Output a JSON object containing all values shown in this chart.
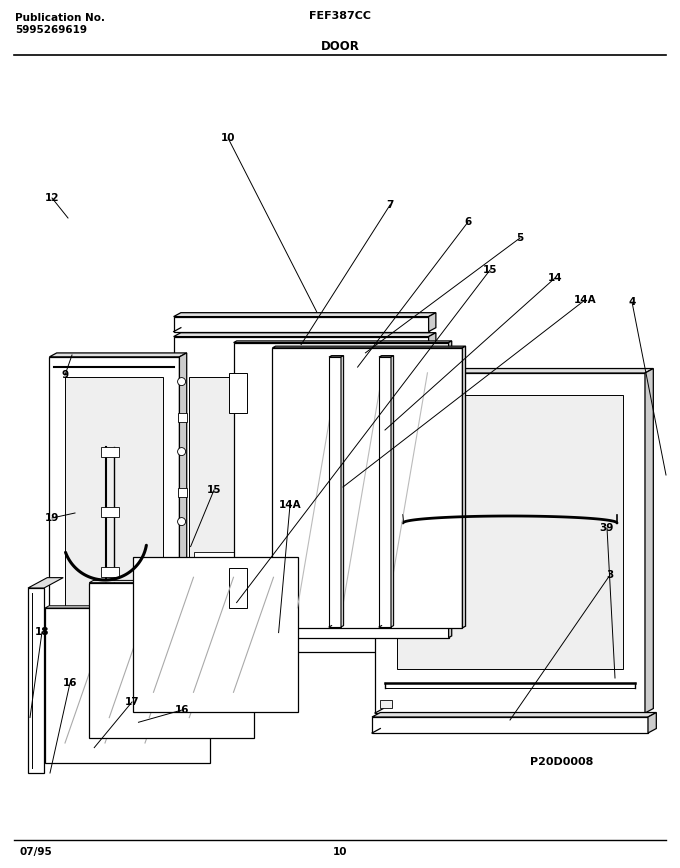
{
  "title_left_line1": "Publication No.",
  "title_left_line2": "5995269619",
  "title_center": "FEF387CC",
  "section_title": "DOOR",
  "bottom_left": "07/95",
  "bottom_center": "10",
  "bottom_right_diagram": "P20D0008",
  "bg_color": "#ffffff",
  "line_color": "#000000",
  "fig_width": 6.8,
  "fig_height": 8.68,
  "dpi": 100
}
